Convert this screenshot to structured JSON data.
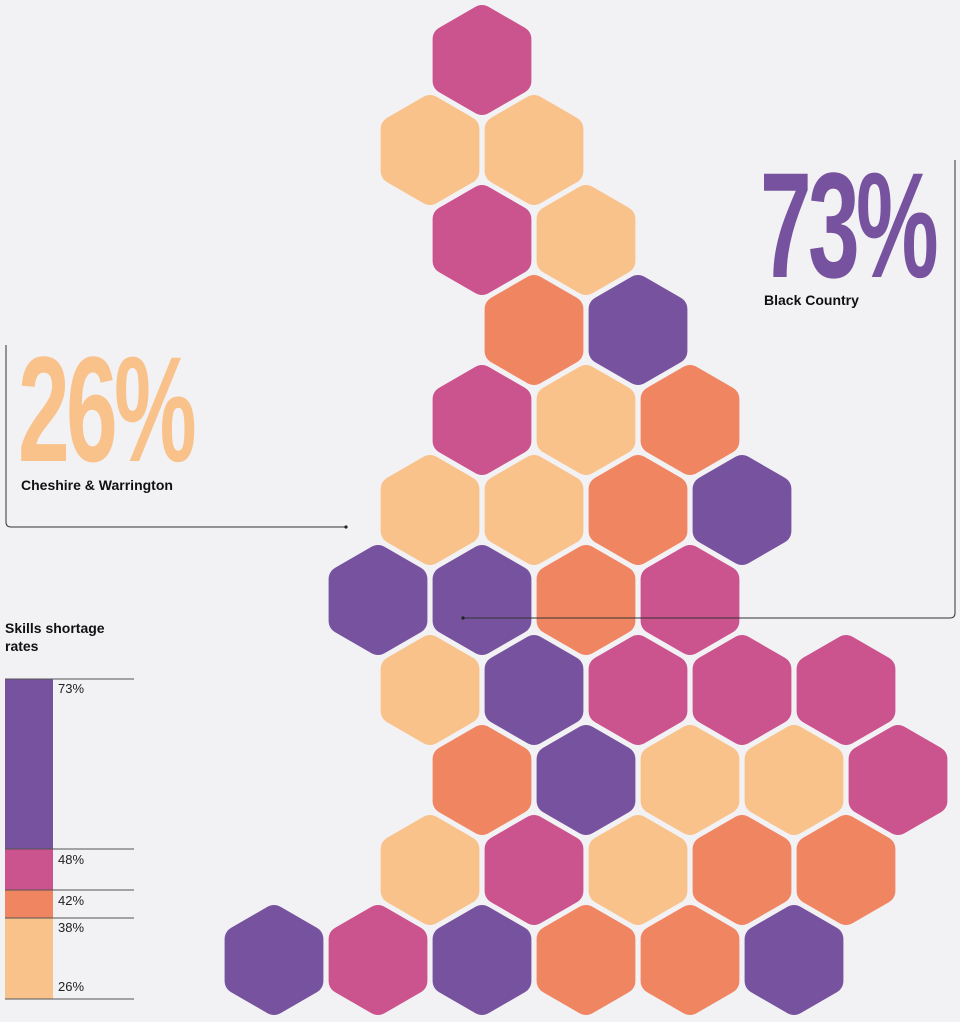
{
  "chart_data": {
    "type": "hex-map",
    "title": "",
    "legend": {
      "title": "Skills shortage rates",
      "ticks": [
        "73%",
        "48%",
        "42%",
        "38%",
        "26%"
      ],
      "bands": [
        {
          "from": 48,
          "to": 73,
          "color": "#77529e"
        },
        {
          "from": 42,
          "to": 48,
          "color": "#cb538e"
        },
        {
          "from": 38,
          "to": 42,
          "color": "#f08562"
        },
        {
          "from": 26,
          "to": 38,
          "color": "#f9c28b"
        }
      ]
    },
    "callouts": [
      {
        "value": "73%",
        "name": "Black Country",
        "color": "#77529e"
      },
      {
        "value": "26%",
        "name": "Cheshire & Warrington",
        "color": "#f9c28b"
      }
    ],
    "rows": [
      {
        "offset": 0.5,
        "cells": [
          null,
          null,
          null,
          "pink"
        ]
      },
      {
        "offset": 0,
        "cells": [
          null,
          null,
          null,
          "peach",
          "peach"
        ]
      },
      {
        "offset": 0.5,
        "cells": [
          null,
          null,
          null,
          "pink",
          "peach"
        ]
      },
      {
        "offset": 0,
        "cells": [
          null,
          null,
          null,
          null,
          "orange",
          "purple"
        ]
      },
      {
        "offset": 0.5,
        "cells": [
          null,
          null,
          null,
          "pink",
          "peach",
          "orange"
        ]
      },
      {
        "offset": 0,
        "cells": [
          null,
          null,
          null,
          "peach",
          "peach",
          "orange",
          "purple"
        ]
      },
      {
        "offset": 0.5,
        "cells": [
          null,
          null,
          "purple",
          "purple",
          "orange",
          "pink"
        ]
      },
      {
        "offset": 0,
        "cells": [
          null,
          null,
          null,
          "peach",
          "purple",
          "pink",
          "pink",
          "pink"
        ]
      },
      {
        "offset": 0.5,
        "cells": [
          null,
          null,
          null,
          "orange",
          "purple",
          "peach",
          "peach",
          "pink"
        ]
      },
      {
        "offset": 0,
        "cells": [
          null,
          null,
          null,
          "peach",
          "pink",
          "peach",
          "orange",
          "orange"
        ]
      },
      {
        "offset": 0.5,
        "cells": [
          null,
          "purple",
          "pink",
          "purple",
          "orange",
          "orange",
          "purple"
        ]
      }
    ],
    "palette": {
      "purple": "#77529e",
      "pink": "#cb538e",
      "orange": "#f08562",
      "peach": "#f9c28b"
    }
  }
}
